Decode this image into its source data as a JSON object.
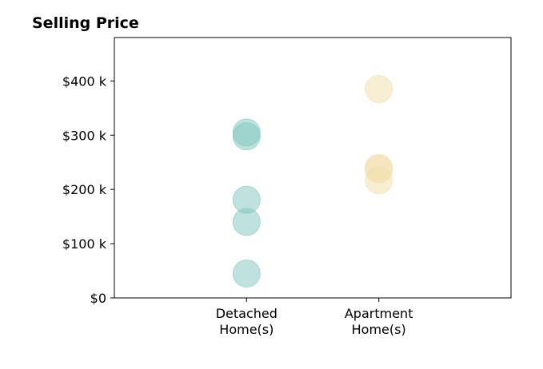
{
  "chart_data": {
    "type": "scatter",
    "title": "Selling Price",
    "xlabel": "",
    "ylabel": "",
    "ylim": [
      0,
      480000
    ],
    "yticks": [
      {
        "value": 0,
        "label": "$0"
      },
      {
        "value": 100000,
        "label": "$100 k"
      },
      {
        "value": 200000,
        "label": "$200 k"
      },
      {
        "value": 300000,
        "label": "$300 k"
      },
      {
        "value": 400000,
        "label": "$400 k"
      }
    ],
    "categories": [
      {
        "line1": "Detached",
        "line2": "Home(s)"
      },
      {
        "line1": "Apartment",
        "line2": "Home(s)"
      }
    ],
    "x_domain": [
      -1,
      2
    ],
    "grid": false,
    "legend": "none",
    "series": [
      {
        "category_index": 0,
        "color": "#7fc6bd",
        "values": [
          45000,
          140000,
          181000,
          298000,
          305000
        ]
      },
      {
        "category_index": 1,
        "color": "#f2ddaa",
        "values": [
          217000,
          237000,
          240000,
          385000
        ]
      }
    ]
  }
}
